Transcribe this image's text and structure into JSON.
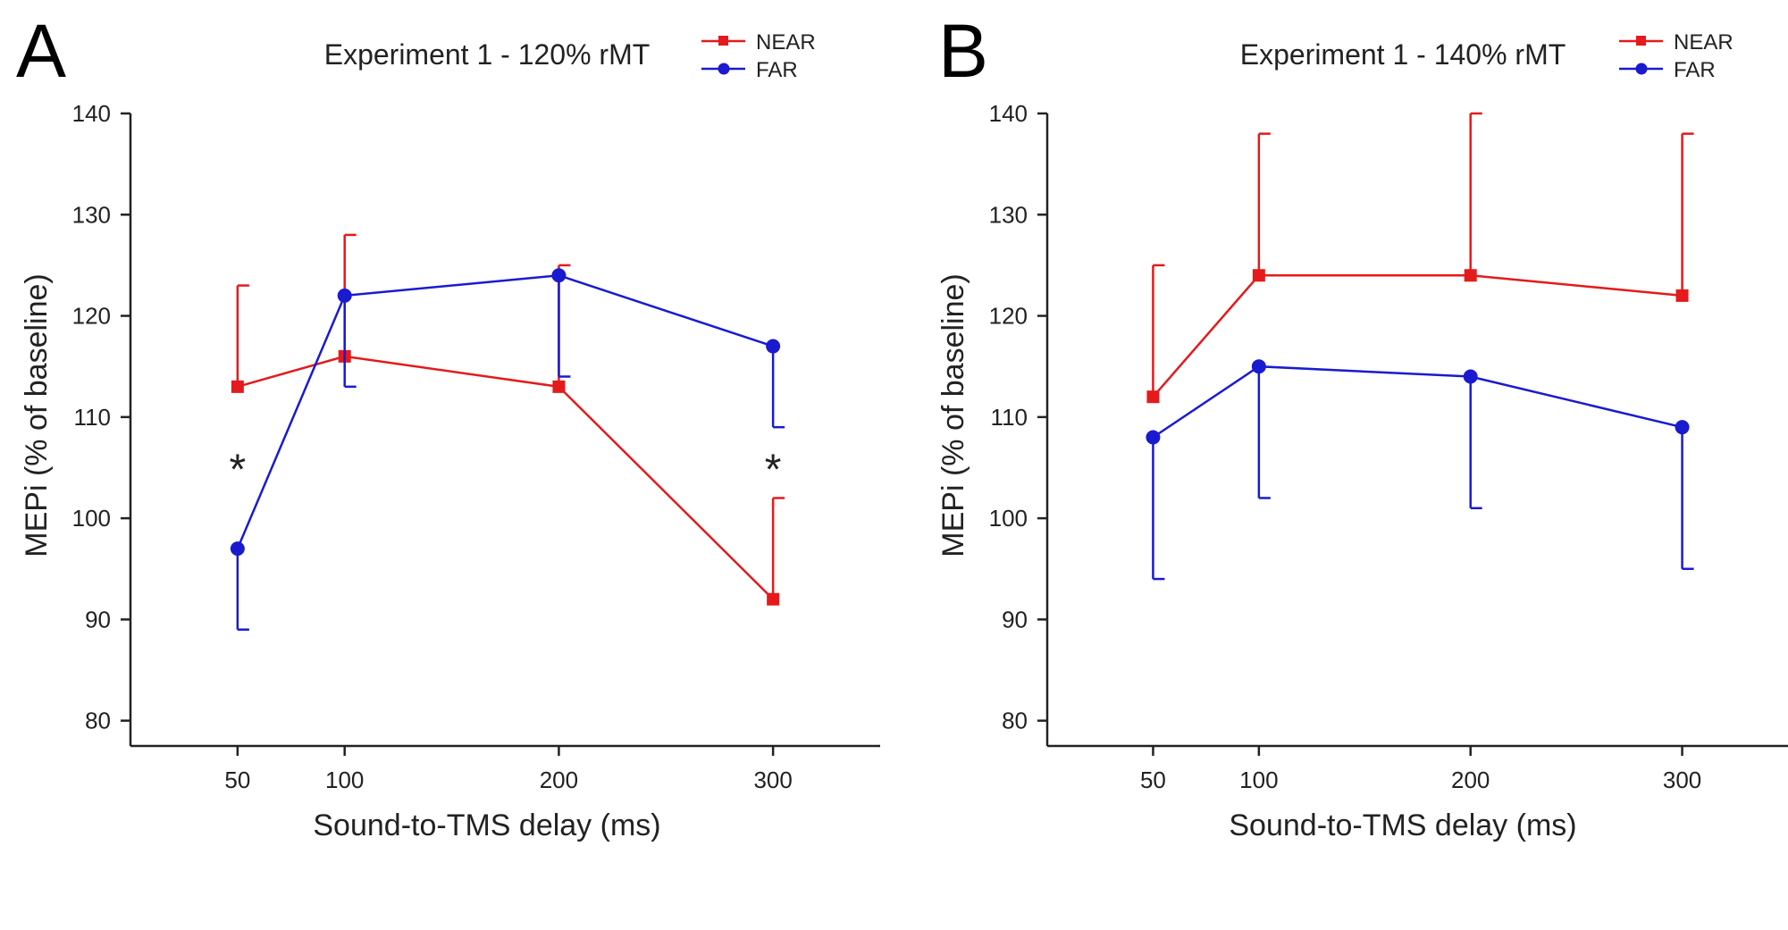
{
  "chart_data": [
    {
      "type": "line",
      "panel_label": "A",
      "title": "Experiment 1 - 120% rMT",
      "xlabel": "Sound-to-TMS delay (ms)",
      "ylabel": "MEPi (% of baseline)",
      "x_ticks": [
        50,
        100,
        200,
        300
      ],
      "y_ticks": [
        80,
        90,
        100,
        110,
        120,
        130,
        140
      ],
      "xlim": [
        0,
        350
      ],
      "ylim": [
        77.5,
        140
      ],
      "grid": false,
      "legend": "top-right",
      "series": [
        {
          "name": "NEAR",
          "color": "#e41a1c",
          "marker": "square",
          "error_direction": "up",
          "x": [
            50,
            100,
            200,
            300
          ],
          "y": [
            113,
            116,
            113,
            92
          ],
          "error": [
            10,
            12,
            12,
            10
          ]
        },
        {
          "name": "FAR",
          "color": "#1a1ad0",
          "marker": "circle",
          "error_direction": "down",
          "x": [
            50,
            100,
            200,
            300
          ],
          "y": [
            97,
            122,
            124,
            117
          ],
          "error": [
            8,
            9,
            10,
            8
          ]
        }
      ],
      "annotations": [
        {
          "text": "*",
          "x": 50,
          "y": 105
        },
        {
          "text": "*",
          "x": 300,
          "y": 105
        }
      ]
    },
    {
      "type": "line",
      "panel_label": "B",
      "title": "Experiment 1 - 140% rMT",
      "xlabel": "Sound-to-TMS delay (ms)",
      "ylabel": "MEPi (% of baseline)",
      "x_ticks": [
        50,
        100,
        200,
        300
      ],
      "y_ticks": [
        80,
        90,
        100,
        110,
        120,
        130,
        140
      ],
      "xlim": [
        0,
        350
      ],
      "ylim": [
        77.5,
        140
      ],
      "grid": false,
      "legend": "top-right",
      "series": [
        {
          "name": "NEAR",
          "color": "#e41a1c",
          "marker": "square",
          "error_direction": "up",
          "x": [
            50,
            100,
            200,
            300
          ],
          "y": [
            112,
            124,
            124,
            122
          ],
          "error": [
            13,
            14,
            16,
            16
          ]
        },
        {
          "name": "FAR",
          "color": "#1a1ad0",
          "marker": "circle",
          "error_direction": "down",
          "x": [
            50,
            100,
            200,
            300
          ],
          "y": [
            108,
            115,
            114,
            109
          ],
          "error": [
            14,
            13,
            13,
            14
          ]
        }
      ],
      "annotations": []
    }
  ]
}
